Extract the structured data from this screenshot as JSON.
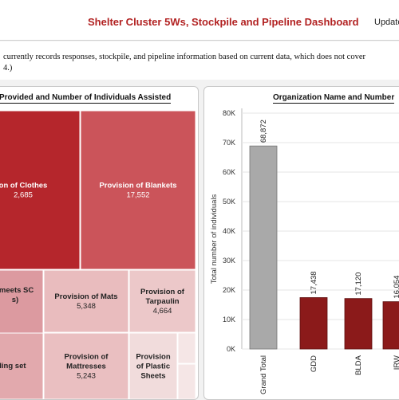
{
  "header": {
    "title": "Shelter Cluster 5Ws, Stockpile and Pipeline Dashboard",
    "updated_label": "Update"
  },
  "note": {
    "line1": "currently records responses, stockpile, and pipeline information based on current data, which does not cover",
    "line2": "4.)"
  },
  "colors": {
    "title": "#b22222",
    "grand_total_bar": "#a9a9a9",
    "org_bar": "#8b1a1a"
  },
  "chart_data": [
    {
      "type": "treemap",
      "title": "Provided and Number of Individuals Assisted",
      "cells": [
        {
          "name": "on of Clothes",
          "value": "2,685",
          "color": "#b5262c",
          "text_color": "#ffffff"
        },
        {
          "name": "Provision of Blankets",
          "value": "17,552",
          "color": "#cb545a",
          "text_color": "#ffffff"
        },
        {
          "name": "(meets SC",
          "name2": "s)",
          "value": "",
          "color": "#dc9aa0",
          "text_color": "#222222"
        },
        {
          "name": "Provision of Mats",
          "value": "5,348",
          "color": "#e9bcbe",
          "text_color": "#222222"
        },
        {
          "name": "Provision of",
          "name2": "Tarpaulin",
          "value": "4,664",
          "color": "#ecc8c9",
          "text_color": "#222222"
        },
        {
          "name": "Provision of",
          "name2": "Mattresses",
          "value": "5,243",
          "color": "#eabfc1",
          "text_color": "#222222"
        },
        {
          "name": "lding set",
          "value": "",
          "color": "#e2a9ad",
          "text_color": "#222222"
        },
        {
          "name": "Provision",
          "name2": "of Plastic",
          "name3": "Sheets",
          "value": "",
          "color": "#f1dcdc",
          "text_color": "#222222"
        },
        {
          "name": "",
          "value": "",
          "color": "#f5e6e6",
          "text_color": "#222222"
        },
        {
          "name": "",
          "value": "",
          "color": "#f5e6e6",
          "text_color": "#222222"
        }
      ]
    },
    {
      "type": "bar",
      "title": "Organization Name and Number",
      "ylabel": "Total number of individuals",
      "ylim": [
        0,
        80000
      ],
      "yticks": [
        0,
        10000,
        20000,
        30000,
        40000,
        50000,
        60000,
        70000,
        80000
      ],
      "ytick_labels": [
        "0K",
        "10K",
        "20K",
        "30K",
        "40K",
        "50K",
        "60K",
        "70K",
        "80K"
      ],
      "categories": [
        "Grand Total",
        "GDD",
        "BLDA",
        "IRW"
      ],
      "values": [
        68872,
        17438,
        17120,
        16054
      ],
      "value_labels": [
        "68,872",
        "17,438",
        "17,120",
        "16,054"
      ],
      "grid": true
    }
  ]
}
